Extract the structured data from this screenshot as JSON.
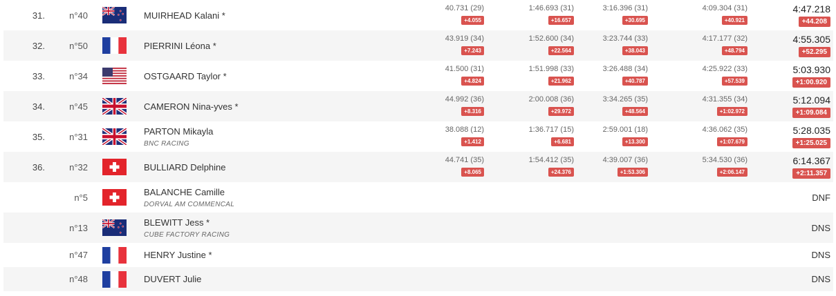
{
  "colors": {
    "gap_badge": "#d9534f",
    "alt_row": "#f5f5f5"
  },
  "rows": [
    {
      "rank": "31.",
      "bib": "n°40",
      "flag": "new-zealand-flag",
      "name": "MUIRHEAD Kalani *",
      "team": "",
      "splits": [
        [
          "40.731 (29)",
          "+4.055"
        ],
        [
          "1:46.693 (31)",
          "+16.657"
        ],
        [
          "3:16.396 (31)",
          "+30.695"
        ],
        [
          "4:09.304 (31)",
          "+40.921"
        ]
      ],
      "time": "4:47.218",
      "gap": "+44.208"
    },
    {
      "rank": "32.",
      "bib": "n°50",
      "flag": "france-flag",
      "name": "PIERRINI Léona *",
      "team": "",
      "splits": [
        [
          "43.919 (34)",
          "+7.243"
        ],
        [
          "1:52.600 (34)",
          "+22.564"
        ],
        [
          "3:23.744 (33)",
          "+38.043"
        ],
        [
          "4:17.177 (32)",
          "+48.794"
        ]
      ],
      "time": "4:55.305",
      "gap": "+52.295"
    },
    {
      "rank": "33.",
      "bib": "n°34",
      "flag": "usa-flag",
      "name": "OSTGAARD Taylor *",
      "team": "",
      "splits": [
        [
          "41.500 (31)",
          "+4.824"
        ],
        [
          "1:51.998 (33)",
          "+21.962"
        ],
        [
          "3:26.488 (34)",
          "+40.787"
        ],
        [
          "4:25.922 (33)",
          "+57.539"
        ]
      ],
      "time": "5:03.930",
      "gap": "+1:00.920"
    },
    {
      "rank": "34.",
      "bib": "n°45",
      "flag": "uk-flag",
      "name": "CAMERON Nina-yves *",
      "team": "",
      "splits": [
        [
          "44.992 (36)",
          "+8.316"
        ],
        [
          "2:00.008 (36)",
          "+29.972"
        ],
        [
          "3:34.265 (35)",
          "+48.564"
        ],
        [
          "4:31.355 (34)",
          "+1:02.972"
        ]
      ],
      "time": "5:12.094",
      "gap": "+1:09.084"
    },
    {
      "rank": "35.",
      "bib": "n°31",
      "flag": "uk-flag",
      "name": "PARTON Mikayla",
      "team": "BNC RACING",
      "splits": [
        [
          "38.088 (12)",
          "+1.412"
        ],
        [
          "1:36.717 (15)",
          "+6.681"
        ],
        [
          "2:59.001 (18)",
          "+13.300"
        ],
        [
          "4:36.062 (35)",
          "+1:07.679"
        ]
      ],
      "time": "5:28.035",
      "gap": "+1:25.025"
    },
    {
      "rank": "36.",
      "bib": "n°32",
      "flag": "switzerland-flag",
      "name": "BULLIARD Delphine",
      "team": "",
      "splits": [
        [
          "44.741 (35)",
          "+8.065"
        ],
        [
          "1:54.412 (35)",
          "+24.376"
        ],
        [
          "4:39.007 (36)",
          "+1:53.306"
        ],
        [
          "5:34.530 (36)",
          "+2:06.147"
        ]
      ],
      "time": "6:14.367",
      "gap": "+2:11.357"
    },
    {
      "rank": "",
      "bib": "n°5",
      "flag": "switzerland-flag",
      "name": "BALANCHE Camille",
      "team": "DORVAL AM COMMENCAL",
      "status": "DNF"
    },
    {
      "rank": "",
      "bib": "n°13",
      "flag": "new-zealand-flag",
      "name": "BLEWITT Jess *",
      "team": "CUBE FACTORY RACING",
      "status": "DNS"
    },
    {
      "rank": "",
      "bib": "n°47",
      "flag": "france-flag",
      "name": "HENRY Justine *",
      "team": "",
      "status": "DNS"
    },
    {
      "rank": "",
      "bib": "n°48",
      "flag": "france-flag",
      "name": "DUVERT Julie",
      "team": "",
      "status": "DNS"
    }
  ]
}
